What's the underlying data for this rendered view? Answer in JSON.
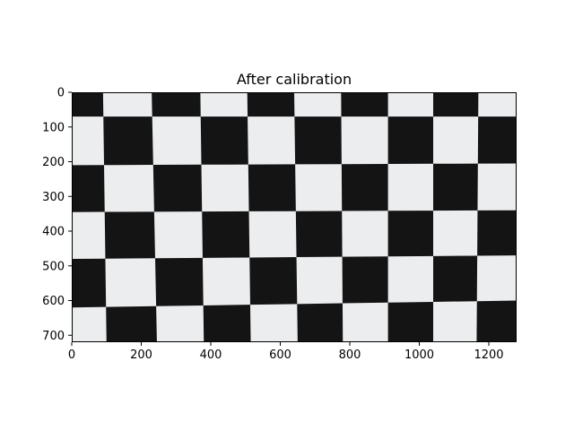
{
  "chart_data": {
    "type": "image",
    "title": "After calibration",
    "xlabel": "",
    "ylabel": "",
    "image_size": [
      1280,
      720
    ],
    "xlim": [
      0,
      1280
    ],
    "ylim": [
      720,
      0
    ],
    "x_ticks": [
      0,
      200,
      400,
      600,
      800,
      1000,
      1200
    ],
    "y_ticks": [
      0,
      100,
      200,
      300,
      400,
      500,
      600,
      700
    ],
    "grid": false,
    "content": "checkerboard calibration pattern",
    "colors": {
      "dark": "#141414",
      "light": "#ecedef",
      "frame": "#000000"
    },
    "checkerboard": {
      "col_edges_top": [
        0,
        90,
        230,
        370,
        505,
        640,
        775,
        910,
        1040,
        1170,
        1280
      ],
      "col_edges_bottom": [
        0,
        100,
        245,
        380,
        515,
        650,
        780,
        910,
        1040,
        1165,
        1280
      ],
      "row_edges_left": [
        0,
        70,
        210,
        345,
        480,
        620,
        720
      ],
      "row_edges_right": [
        0,
        70,
        205,
        340,
        470,
        600,
        720
      ],
      "top_left_dark": true
    }
  }
}
